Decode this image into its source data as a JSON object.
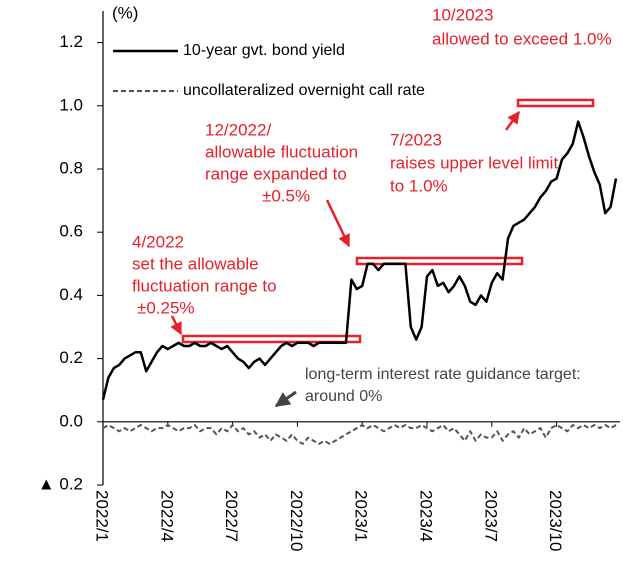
{
  "chart_data": {
    "type": "line",
    "y_label": "(%)",
    "ylim": [
      -0.2,
      1.3
    ],
    "yticks": [
      {
        "value": -0.2,
        "label": "▲ 0.2"
      },
      {
        "value": 0,
        "label": "0.0"
      },
      0.2,
      0.4,
      0.6,
      0.8,
      {
        "value": 1,
        "label": "1.0"
      },
      1.2
    ],
    "categories": [
      "2022/1",
      null,
      null,
      null,
      null,
      null,
      null,
      null,
      null,
      null,
      null,
      null,
      "2022/4",
      null,
      null,
      null,
      null,
      null,
      null,
      null,
      null,
      null,
      null,
      null,
      "2022/7",
      null,
      null,
      null,
      null,
      null,
      null,
      null,
      null,
      null,
      null,
      null,
      "2022/10",
      null,
      null,
      null,
      null,
      null,
      null,
      null,
      null,
      null,
      null,
      null,
      "2023/1",
      null,
      null,
      null,
      null,
      null,
      null,
      null,
      null,
      null,
      null,
      null,
      "2023/4",
      null,
      null,
      null,
      null,
      null,
      null,
      null,
      null,
      null,
      null,
      null,
      "2023/7",
      null,
      null,
      null,
      null,
      null,
      null,
      null,
      null,
      null,
      null,
      null,
      "2023/10",
      null,
      null,
      null,
      null,
      null,
      null,
      null,
      null,
      null,
      null,
      null
    ],
    "series": [
      {
        "name": "10-year gvt. bond yield",
        "color": "#000000",
        "dashed": false,
        "values": [
          0.07,
          0.14,
          0.17,
          0.18,
          0.2,
          0.21,
          0.22,
          0.22,
          0.16,
          0.19,
          0.22,
          0.24,
          0.23,
          0.24,
          0.25,
          0.24,
          0.24,
          0.25,
          0.24,
          0.24,
          0.25,
          0.24,
          0.23,
          0.24,
          0.22,
          0.2,
          0.19,
          0.17,
          0.19,
          0.2,
          0.18,
          0.2,
          0.22,
          0.24,
          0.25,
          0.24,
          0.25,
          0.25,
          0.25,
          0.24,
          0.25,
          0.25,
          0.25,
          0.25,
          0.25,
          0.25,
          0.45,
          0.42,
          0.43,
          0.5,
          0.5,
          0.48,
          0.5,
          0.5,
          0.5,
          0.5,
          0.5,
          0.3,
          0.26,
          0.3,
          0.46,
          0.48,
          0.43,
          0.44,
          0.41,
          0.43,
          0.46,
          0.43,
          0.38,
          0.37,
          0.4,
          0.38,
          0.44,
          0.47,
          0.45,
          0.58,
          0.62,
          0.63,
          0.64,
          0.66,
          0.68,
          0.71,
          0.73,
          0.76,
          0.77,
          0.83,
          0.85,
          0.88,
          0.95,
          0.9,
          0.84,
          0.79,
          0.75,
          0.66,
          0.68,
          0.77
        ]
      },
      {
        "name": "uncollateralized overnight call rate",
        "color": "#555555",
        "dashed": true,
        "values": [
          -0.02,
          -0.01,
          -0.02,
          -0.03,
          -0.02,
          -0.03,
          -0.02,
          -0.01,
          -0.02,
          -0.03,
          -0.02,
          -0.02,
          -0.01,
          -0.02,
          -0.03,
          -0.02,
          -0.02,
          -0.01,
          -0.03,
          -0.02,
          -0.02,
          -0.04,
          -0.02,
          -0.03,
          -0.01,
          -0.03,
          -0.02,
          -0.04,
          -0.03,
          -0.05,
          -0.04,
          -0.06,
          -0.04,
          -0.05,
          -0.06,
          -0.04,
          -0.06,
          -0.07,
          -0.05,
          -0.06,
          -0.07,
          -0.06,
          -0.07,
          -0.06,
          -0.05,
          -0.04,
          -0.03,
          -0.02,
          -0.01,
          -0.02,
          -0.01,
          -0.02,
          -0.03,
          -0.02,
          -0.01,
          -0.02,
          -0.01,
          -0.02,
          -0.02,
          -0.01,
          -0.02,
          -0.03,
          -0.02,
          -0.01,
          -0.03,
          -0.02,
          -0.04,
          -0.06,
          -0.03,
          -0.06,
          -0.04,
          -0.05,
          -0.05,
          -0.03,
          -0.06,
          -0.04,
          -0.03,
          -0.05,
          -0.02,
          -0.04,
          -0.03,
          -0.02,
          -0.05,
          -0.02,
          -0.01,
          -0.02,
          -0.03,
          -0.01,
          -0.02,
          -0.01,
          -0.02,
          -0.01,
          -0.02,
          -0.01,
          -0.02,
          -0.01
        ]
      }
    ],
    "annotations": [
      {
        "lines": [
          "4/2022",
          "set the allowable",
          "fluctuation range to",
          "±0.25%"
        ]
      },
      {
        "lines": [
          "12/2022/",
          "allowable fluctuation",
          "range expanded to",
          "±0.5%"
        ]
      },
      {
        "lines": [
          "7/2023",
          "raises upper level limit",
          "to 1.0%"
        ]
      },
      {
        "lines": [
          "10/2023",
          "allowed to exceed 1.0%"
        ]
      },
      {
        "lines": [
          "long-term interest rate guidance target:",
          "around 0%"
        ]
      }
    ]
  }
}
